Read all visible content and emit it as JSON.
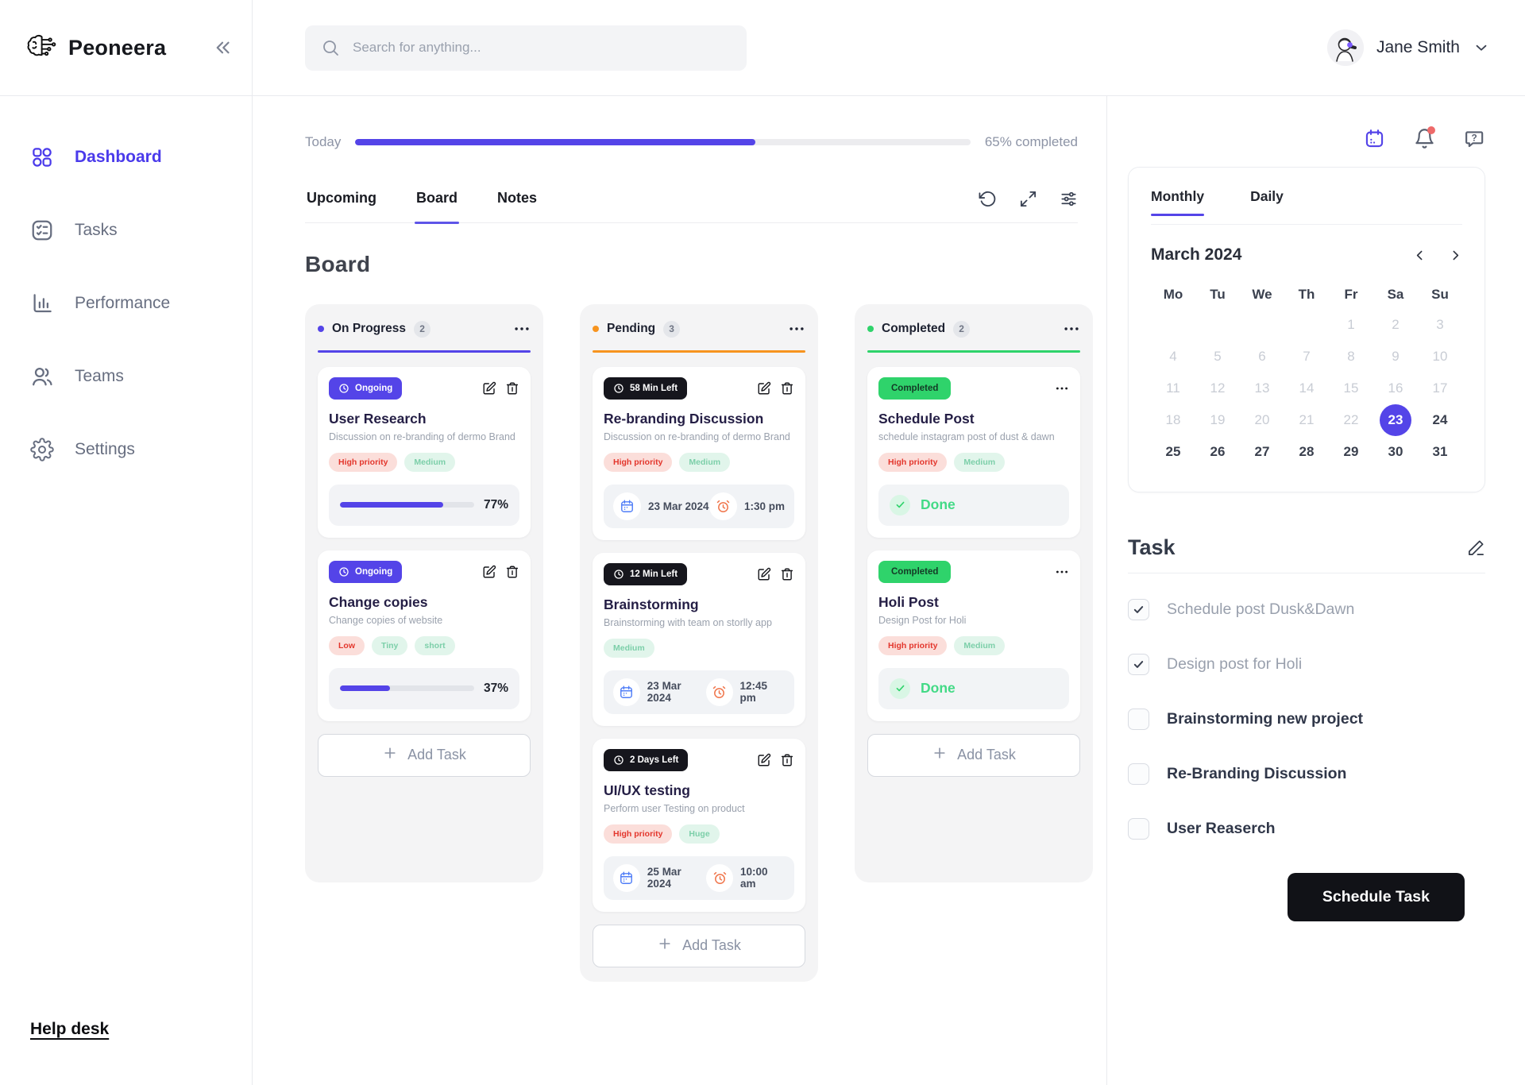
{
  "brand": {
    "name": "Peoneera"
  },
  "search": {
    "placeholder": "Search for anything..."
  },
  "user": {
    "name": "Jane Smith"
  },
  "sidebar": {
    "items": [
      {
        "label": "Dashboard",
        "icon": "dashboard",
        "active": true
      },
      {
        "label": "Tasks",
        "icon": "tasks",
        "active": false
      },
      {
        "label": "Performance",
        "icon": "performance",
        "active": false
      },
      {
        "label": "Teams",
        "icon": "teams",
        "active": false
      },
      {
        "label": "Settings",
        "icon": "settings",
        "active": false
      }
    ],
    "help_link": "Help desk"
  },
  "progress": {
    "label": "Today",
    "percent": 65,
    "completed_text": "65% completed"
  },
  "view_tabs": {
    "items": [
      "Upcoming",
      "Board",
      "Notes"
    ],
    "active": "Board"
  },
  "board": {
    "title": "Board",
    "columns": [
      {
        "name": "On Progress",
        "count": "2",
        "accent": "#5444e8",
        "add_label": "Add Task",
        "cards": [
          {
            "kind": "ongoing",
            "badge": "Ongoing",
            "title": "User Research",
            "subtitle": "Discussion on re-branding of dermo Brand",
            "tags": [
              {
                "label": "High priority",
                "variant": "red"
              },
              {
                "label": "Medium",
                "variant": "green"
              }
            ],
            "progress": 77,
            "progress_text": "77%"
          },
          {
            "kind": "ongoing",
            "badge": "Ongoing",
            "title": "Change copies",
            "subtitle": "Change copies of website",
            "tags": [
              {
                "label": "Low",
                "variant": "red"
              },
              {
                "label": "Tiny",
                "variant": "green"
              },
              {
                "label": "short",
                "variant": "green"
              }
            ],
            "progress": 37,
            "progress_text": "37%"
          }
        ]
      },
      {
        "name": "Pending",
        "count": "3",
        "accent": "#f7941f",
        "add_label": "Add Task",
        "cards": [
          {
            "kind": "timed",
            "badge": "58 Min Left",
            "title": "Re-branding Discussion",
            "subtitle": "Discussion on re-branding of dermo Brand",
            "tags": [
              {
                "label": "High priority",
                "variant": "red"
              },
              {
                "label": "Medium",
                "variant": "green"
              }
            ],
            "date": "23 Mar 2024",
            "time": "1:30 pm"
          },
          {
            "kind": "timed",
            "badge": "12 Min Left",
            "title": "Brainstorming",
            "subtitle": "Brainstorming with team on storlly app",
            "tags": [
              {
                "label": "Medium",
                "variant": "green"
              }
            ],
            "date": "23 Mar 2024",
            "time": "12:45 pm"
          },
          {
            "kind": "timed",
            "badge": "2 Days Left",
            "title": "UI/UX testing",
            "subtitle": "Perform user Testing on product",
            "tags": [
              {
                "label": "High priority",
                "variant": "red"
              },
              {
                "label": "Huge",
                "variant": "green"
              }
            ],
            "date": "25 Mar 2024",
            "time": "10:00 am"
          }
        ]
      },
      {
        "name": "Completed",
        "count": "2",
        "accent": "#2fd36b",
        "add_label": "Add Task",
        "cards": [
          {
            "kind": "done",
            "badge": "Completed",
            "title": "Schedule Post",
            "subtitle": "schedule instagram post of dust & dawn",
            "tags": [
              {
                "label": "High priority",
                "variant": "red"
              },
              {
                "label": "Medium",
                "variant": "green"
              }
            ],
            "done_label": "Done"
          },
          {
            "kind": "done",
            "badge": "Completed",
            "title": "Holi Post",
            "subtitle": "Design Post for Holi",
            "tags": [
              {
                "label": "High priority",
                "variant": "red"
              },
              {
                "label": "Medium",
                "variant": "green"
              }
            ],
            "done_label": "Done"
          }
        ]
      }
    ]
  },
  "panel": {
    "calendar": {
      "tabs": [
        "Monthly",
        "Daily"
      ],
      "active_tab": "Monthly",
      "month": "March 2024",
      "weekdays": [
        "Mo",
        "Tu",
        "We",
        "Th",
        "Fr",
        "Sa",
        "Su"
      ],
      "leading_blanks": 4,
      "days_in_month": 31,
      "muted_through": 22,
      "selected_day": 23
    },
    "tasks": {
      "title": "Task",
      "items": [
        {
          "label": "Schedule post Dusk&Dawn",
          "checked": true
        },
        {
          "label": "Design post for Holi",
          "checked": true
        },
        {
          "label": "Brainstorming new project",
          "checked": false
        },
        {
          "label": "Re-Branding Discussion",
          "checked": false
        },
        {
          "label": "User Reaserch",
          "checked": false
        }
      ]
    },
    "schedule_button": "Schedule Task"
  }
}
